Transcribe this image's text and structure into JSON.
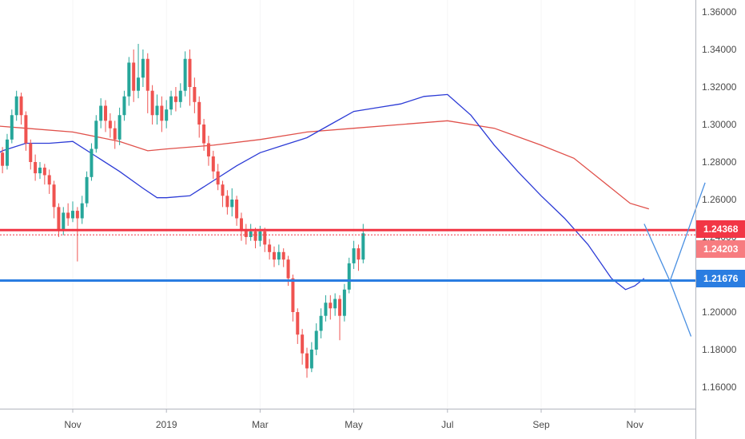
{
  "chart_data": {
    "type": "candlestick",
    "title": "",
    "xlabel": "",
    "ylabel": "",
    "ylim": [
      1.15,
      1.365
    ],
    "y_ticks": [
      "1.36000",
      "1.34000",
      "1.32000",
      "1.30000",
      "1.28000",
      "1.26000",
      "1.24000",
      "1.22000",
      "1.20000",
      "1.18000",
      "1.16000"
    ],
    "x_ticks": [
      "Nov",
      "2019",
      "Mar",
      "May",
      "Jul",
      "Sep",
      "Nov"
    ],
    "colors": {
      "up": "#26a69a",
      "down": "#ef5350",
      "ma_fast": "#2c3bd6",
      "ma_slow": "#e0504a",
      "resistance": "#f23645",
      "support": "#2a7de1",
      "projection": "#4a90e2"
    },
    "price_badges": [
      {
        "label": "1.24368",
        "value": 1.24368,
        "color": "#f23645"
      },
      {
        "label": "1.24203",
        "value": 1.24203,
        "color": "#f77c80"
      },
      {
        "label": "1.21676",
        "value": 1.21676,
        "color": "#2a7de1"
      }
    ],
    "levels": [
      {
        "name": "resistance",
        "value": 1.2437
      },
      {
        "name": "support",
        "value": 1.2168
      }
    ],
    "ma_fast": [
      [
        -2.4,
        1.276
      ],
      [
        -2,
        1.279
      ],
      [
        -1.5,
        1.286
      ],
      [
        -1,
        1.29
      ],
      [
        -0.5,
        1.29
      ],
      [
        0,
        1.291
      ],
      [
        0.5,
        1.283
      ],
      [
        1,
        1.275
      ],
      [
        1.5,
        1.266
      ],
      [
        1.8,
        1.261
      ],
      [
        2,
        1.261
      ],
      [
        2.5,
        1.262
      ],
      [
        3,
        1.27
      ],
      [
        3.5,
        1.278
      ],
      [
        4,
        1.285
      ],
      [
        4.5,
        1.289
      ],
      [
        5,
        1.293
      ],
      [
        5.5,
        1.3
      ],
      [
        6,
        1.307
      ],
      [
        6.5,
        1.309
      ],
      [
        7,
        1.311
      ],
      [
        7.5,
        1.315
      ],
      [
        8,
        1.316
      ],
      [
        8.5,
        1.305
      ],
      [
        9,
        1.289
      ],
      [
        9.5,
        1.275
      ],
      [
        10,
        1.262
      ],
      [
        10.5,
        1.25
      ],
      [
        11,
        1.236
      ],
      [
        11.5,
        1.218
      ],
      [
        11.8,
        1.212
      ],
      [
        12,
        1.214
      ],
      [
        12.2,
        1.218
      ]
    ],
    "ma_slow": [
      [
        -2.4,
        1.301
      ],
      [
        -2,
        1.3
      ],
      [
        -1,
        1.298
      ],
      [
        0,
        1.296
      ],
      [
        1,
        1.291
      ],
      [
        1.6,
        1.286
      ],
      [
        2,
        1.287
      ],
      [
        3,
        1.289
      ],
      [
        4,
        1.292
      ],
      [
        5,
        1.296
      ],
      [
        6,
        1.298
      ],
      [
        7,
        1.3
      ],
      [
        8,
        1.302
      ],
      [
        9,
        1.298
      ],
      [
        10,
        1.289
      ],
      [
        10.7,
        1.282
      ],
      [
        11.3,
        1.27
      ],
      [
        11.9,
        1.258
      ],
      [
        12.3,
        1.255
      ]
    ],
    "projection": [
      [
        12.2,
        1.247
      ],
      [
        12.75,
        1.2165
      ],
      [
        13.5,
        1.269
      ],
      [
        12.75,
        1.2165
      ],
      [
        13.2,
        1.187
      ]
    ],
    "candles": [
      [
        -2.4,
        1.262,
        1.268,
        1.269,
        1.25
      ],
      [
        -2.3,
        1.268,
        1.274,
        1.279,
        1.264
      ],
      [
        -2.2,
        1.274,
        1.286,
        1.288,
        1.271
      ],
      [
        -2.1,
        1.286,
        1.293,
        1.296,
        1.283
      ],
      [
        -2,
        1.293,
        1.301,
        1.304,
        1.29
      ],
      [
        -1.9,
        1.301,
        1.308,
        1.311,
        1.297
      ],
      [
        -1.8,
        1.308,
        1.303,
        1.31,
        1.297
      ],
      [
        -1.7,
        1.303,
        1.296,
        1.305,
        1.29
      ],
      [
        -1.6,
        1.296,
        1.285,
        1.298,
        1.281
      ],
      [
        -1.5,
        1.285,
        1.278,
        1.288,
        1.274
      ],
      [
        -1.4,
        1.278,
        1.292,
        1.295,
        1.276
      ],
      [
        -1.3,
        1.292,
        1.305,
        1.308,
        1.29
      ],
      [
        -1.2,
        1.305,
        1.315,
        1.318,
        1.302
      ],
      [
        -1.1,
        1.315,
        1.305,
        1.317,
        1.3
      ],
      [
        -1,
        1.305,
        1.29,
        1.307,
        1.286
      ],
      [
        -0.9,
        1.29,
        1.28,
        1.292,
        1.276
      ],
      [
        -0.8,
        1.28,
        1.274,
        1.284,
        1.27
      ],
      [
        -0.7,
        1.274,
        1.277,
        1.28,
        1.271
      ],
      [
        -0.6,
        1.277,
        1.273,
        1.279,
        1.268
      ],
      [
        -0.5,
        1.273,
        1.268,
        1.276,
        1.263
      ],
      [
        -0.4,
        1.268,
        1.256,
        1.27,
        1.25
      ],
      [
        -0.3,
        1.256,
        1.244,
        1.258,
        1.24
      ],
      [
        -0.2,
        1.244,
        1.253,
        1.256,
        1.241
      ],
      [
        -0.1,
        1.253,
        1.25,
        1.258,
        1.246
      ],
      [
        0,
        1.25,
        1.254,
        1.259,
        1.248
      ],
      [
        0.1,
        1.254,
        1.25,
        1.256,
        1.227
      ],
      [
        0.2,
        1.25,
        1.258,
        1.262,
        1.247
      ],
      [
        0.3,
        1.258,
        1.272,
        1.275,
        1.256
      ],
      [
        0.4,
        1.272,
        1.287,
        1.29,
        1.27
      ],
      [
        0.5,
        1.287,
        1.302,
        1.305,
        1.285
      ],
      [
        0.6,
        1.302,
        1.31,
        1.314,
        1.298
      ],
      [
        0.7,
        1.31,
        1.302,
        1.313,
        1.296
      ],
      [
        0.8,
        1.302,
        1.298,
        1.306,
        1.293
      ],
      [
        0.9,
        1.298,
        1.292,
        1.302,
        1.287
      ],
      [
        1,
        1.292,
        1.305,
        1.309,
        1.289
      ],
      [
        1.1,
        1.305,
        1.315,
        1.318,
        1.302
      ],
      [
        1.2,
        1.315,
        1.333,
        1.336,
        1.31
      ],
      [
        1.3,
        1.333,
        1.318,
        1.34,
        1.312
      ],
      [
        1.4,
        1.318,
        1.325,
        1.343,
        1.314
      ],
      [
        1.5,
        1.325,
        1.335,
        1.34,
        1.32
      ],
      [
        1.6,
        1.335,
        1.318,
        1.338,
        1.306
      ],
      [
        1.7,
        1.318,
        1.305,
        1.321,
        1.3
      ],
      [
        1.8,
        1.305,
        1.31,
        1.316,
        1.3
      ],
      [
        1.9,
        1.31,
        1.302,
        1.315,
        1.296
      ],
      [
        2,
        1.302,
        1.308,
        1.313,
        1.298
      ],
      [
        2.1,
        1.308,
        1.315,
        1.318,
        1.305
      ],
      [
        2.2,
        1.315,
        1.312,
        1.32,
        1.307
      ],
      [
        2.3,
        1.312,
        1.318,
        1.322,
        1.309
      ],
      [
        2.4,
        1.318,
        1.335,
        1.339,
        1.315
      ],
      [
        2.5,
        1.335,
        1.32,
        1.34,
        1.31
      ],
      [
        2.6,
        1.32,
        1.312,
        1.325,
        1.306
      ],
      [
        2.7,
        1.312,
        1.3,
        1.315,
        1.293
      ],
      [
        2.8,
        1.3,
        1.29,
        1.303,
        1.286
      ],
      [
        2.9,
        1.29,
        1.283,
        1.294,
        1.278
      ],
      [
        3,
        1.283,
        1.275,
        1.286,
        1.271
      ],
      [
        3.1,
        1.275,
        1.268,
        1.279,
        1.265
      ],
      [
        3.2,
        1.268,
        1.262,
        1.27,
        1.256
      ],
      [
        3.3,
        1.262,
        1.256,
        1.265,
        1.252
      ],
      [
        3.4,
        1.256,
        1.26,
        1.266,
        1.251
      ],
      [
        3.5,
        1.26,
        1.25,
        1.262,
        1.246
      ],
      [
        3.6,
        1.25,
        1.244,
        1.253,
        1.238
      ],
      [
        3.7,
        1.244,
        1.24,
        1.247,
        1.236
      ],
      [
        3.8,
        1.24,
        1.243,
        1.247,
        1.238
      ],
      [
        3.9,
        1.243,
        1.238,
        1.245,
        1.234
      ],
      [
        4,
        1.238,
        1.243,
        1.246,
        1.235
      ],
      [
        4.1,
        1.243,
        1.236,
        1.245,
        1.232
      ],
      [
        4.2,
        1.236,
        1.232,
        1.239,
        1.228
      ],
      [
        4.3,
        1.232,
        1.228,
        1.235,
        1.224
      ],
      [
        4.4,
        1.228,
        1.232,
        1.236,
        1.225
      ],
      [
        4.5,
        1.232,
        1.228,
        1.234,
        1.224
      ],
      [
        4.6,
        1.228,
        1.218,
        1.23,
        1.214
      ],
      [
        4.7,
        1.218,
        1.2,
        1.22,
        1.195
      ],
      [
        4.8,
        1.2,
        1.188,
        1.202,
        1.183
      ],
      [
        4.9,
        1.188,
        1.178,
        1.191,
        1.172
      ],
      [
        5,
        1.178,
        1.17,
        1.181,
        1.165
      ],
      [
        5.1,
        1.17,
        1.18,
        1.184,
        1.168
      ],
      [
        5.2,
        1.18,
        1.19,
        1.194,
        1.177
      ],
      [
        5.3,
        1.19,
        1.198,
        1.202,
        1.186
      ],
      [
        5.4,
        1.198,
        1.205,
        1.209,
        1.195
      ],
      [
        5.5,
        1.205,
        1.202,
        1.209,
        1.196
      ],
      [
        5.6,
        1.202,
        1.207,
        1.21,
        1.198
      ],
      [
        5.7,
        1.207,
        1.198,
        1.209,
        1.185
      ],
      [
        5.8,
        1.198,
        1.212,
        1.215,
        1.195
      ],
      [
        5.9,
        1.212,
        1.226,
        1.229,
        1.21
      ],
      [
        6,
        1.226,
        1.234,
        1.238,
        1.223
      ],
      [
        6.1,
        1.234,
        1.228,
        1.236,
        1.222
      ],
      [
        6.2,
        1.228,
        1.242,
        1.247,
        1.226
      ]
    ]
  }
}
